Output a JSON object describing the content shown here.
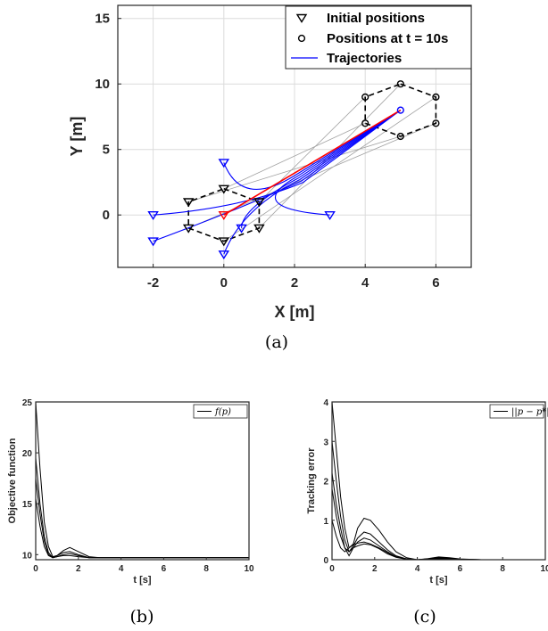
{
  "captions": [
    "(a)",
    "(b)",
    "(c)"
  ],
  "chart_data": [
    {
      "type": "scatter",
      "xlabel": "X [m]",
      "ylabel": "Y [m]",
      "xlim": [
        -3,
        7
      ],
      "ylim": [
        -4,
        16
      ],
      "xticks": [
        -2,
        0,
        2,
        4,
        6
      ],
      "yticks": [
        0,
        5,
        10,
        15
      ],
      "grid": true,
      "legend_position": "top-right",
      "legend": [
        "Initial positions",
        "Positions at t = 10s",
        "Trajectories"
      ],
      "initial_positions": [
        [
          0,
          2
        ],
        [
          1,
          1
        ],
        [
          1,
          -1
        ],
        [
          0,
          -2
        ],
        [
          -1,
          -1
        ],
        [
          -1,
          1
        ]
      ],
      "initial_positions_blue": [
        [
          0,
          4
        ],
        [
          3,
          0
        ],
        [
          0.5,
          -1
        ],
        [
          0,
          -3
        ],
        [
          -2,
          -2
        ],
        [
          -2,
          0
        ]
      ],
      "final_positions": [
        [
          5,
          10
        ],
        [
          6,
          9
        ],
        [
          6,
          7
        ],
        [
          5,
          6
        ],
        [
          4,
          7
        ],
        [
          4,
          9
        ]
      ],
      "final_position_blue": [
        5,
        8
      ],
      "initial_position_red": [
        0,
        0
      ],
      "colors": {
        "trajectory": "#0000ff",
        "leader": "#ff0000",
        "formation": "#000000",
        "reference": "#a0a0a0"
      }
    },
    {
      "type": "line",
      "xlabel": "t [s]",
      "ylabel": "Objective function",
      "xlim": [
        0,
        10
      ],
      "ylim": [
        9.5,
        25
      ],
      "xticks": [
        0,
        2,
        4,
        6,
        8,
        10
      ],
      "yticks": [
        10,
        15,
        20,
        25
      ],
      "legend": [
        "f(p)"
      ],
      "legend_position": "top-right",
      "series": [
        {
          "x": [
            0,
            0.2,
            0.4,
            0.6,
            0.8,
            1.0,
            1.3,
            1.6,
            2.0,
            2.5,
            3.0,
            4.0,
            6.0,
            10.0
          ],
          "values": [
            25.0,
            18.5,
            13.2,
            10.8,
            9.8,
            9.9,
            10.4,
            10.7,
            10.3,
            9.8,
            9.7,
            9.7,
            9.7,
            9.7
          ]
        },
        {
          "x": [
            0,
            0.2,
            0.4,
            0.6,
            0.8,
            1.0,
            1.3,
            1.6,
            2.0,
            2.5,
            3.0,
            4.0,
            6.0,
            10.0
          ],
          "values": [
            19.5,
            15.0,
            11.8,
            10.2,
            9.7,
            9.9,
            10.2,
            10.3,
            10.0,
            9.7,
            9.7,
            9.7,
            9.7,
            9.7
          ]
        },
        {
          "x": [
            0,
            0.2,
            0.4,
            0.6,
            0.8,
            1.0,
            1.3,
            1.6,
            2.0,
            2.5,
            3.0,
            4.0,
            6.0,
            10.0
          ],
          "values": [
            17.5,
            14.0,
            11.3,
            10.0,
            9.7,
            9.8,
            10.0,
            10.1,
            9.9,
            9.7,
            9.7,
            9.7,
            9.7,
            9.7
          ]
        },
        {
          "x": [
            0,
            0.2,
            0.4,
            0.6,
            0.8,
            1.0,
            1.3,
            1.6,
            2.0,
            2.5,
            3.0,
            4.0,
            6.0,
            10.0
          ],
          "values": [
            15.5,
            12.8,
            10.8,
            9.9,
            9.7,
            9.8,
            9.9,
            9.9,
            9.8,
            9.7,
            9.7,
            9.7,
            9.7,
            9.7
          ]
        }
      ]
    },
    {
      "type": "line",
      "xlabel": "t [s]",
      "ylabel": "Tracking error",
      "xlim": [
        0,
        10
      ],
      "ylim": [
        0,
        4
      ],
      "xticks": [
        0,
        2,
        4,
        6,
        8,
        10
      ],
      "yticks": [
        0,
        1,
        2,
        3,
        4
      ],
      "legend": [
        "||p − p*||"
      ],
      "legend_position": "top-right",
      "series": [
        {
          "x": [
            0,
            0.2,
            0.4,
            0.6,
            0.8,
            1.0,
            1.2,
            1.5,
            1.8,
            2.2,
            2.6,
            3.0,
            3.5,
            4.0,
            4.5,
            5.0,
            5.5,
            6.0,
            7.0,
            10.0
          ],
          "values": [
            4.0,
            2.8,
            1.6,
            0.8,
            0.3,
            0.4,
            0.8,
            1.05,
            1.0,
            0.75,
            0.45,
            0.2,
            0.05,
            0.0,
            0.03,
            0.07,
            0.05,
            0.02,
            0.0,
            0.0
          ]
        },
        {
          "x": [
            0,
            0.2,
            0.4,
            0.6,
            0.8,
            1.0,
            1.2,
            1.5,
            1.8,
            2.2,
            2.6,
            3.0,
            3.5,
            4.0,
            4.5,
            5.0,
            5.5,
            6.0,
            7.0,
            10.0
          ],
          "values": [
            3.0,
            2.0,
            1.1,
            0.5,
            0.2,
            0.35,
            0.55,
            0.7,
            0.65,
            0.45,
            0.25,
            0.1,
            0.02,
            0.0,
            0.02,
            0.05,
            0.04,
            0.01,
            0.0,
            0.0
          ]
        },
        {
          "x": [
            0,
            0.2,
            0.4,
            0.6,
            0.8,
            1.0,
            1.2,
            1.5,
            1.8,
            2.2,
            2.6,
            3.0,
            3.5,
            4.0,
            4.5,
            5.0,
            5.5,
            6.0,
            7.0,
            10.0
          ],
          "values": [
            2.2,
            1.4,
            0.8,
            0.3,
            0.1,
            0.3,
            0.45,
            0.55,
            0.5,
            0.35,
            0.2,
            0.08,
            0.02,
            0.0,
            0.02,
            0.04,
            0.03,
            0.01,
            0.0,
            0.0
          ]
        },
        {
          "x": [
            0,
            0.2,
            0.4,
            0.6,
            0.8,
            1.0,
            1.2,
            1.5,
            1.8,
            2.2,
            2.6,
            3.0,
            3.5,
            4.0,
            4.5,
            5.0,
            5.5,
            6.0,
            7.0,
            10.0
          ],
          "values": [
            1.8,
            1.1,
            0.6,
            0.3,
            0.2,
            0.3,
            0.35,
            0.4,
            0.38,
            0.28,
            0.15,
            0.06,
            0.01,
            0.0,
            0.01,
            0.03,
            0.02,
            0.01,
            0.0,
            0.0
          ]
        },
        {
          "x": [
            0,
            0.2,
            0.4,
            0.6,
            0.8,
            1.0,
            1.2,
            1.5,
            1.8,
            2.2,
            2.6,
            3.0,
            3.5,
            4.0,
            4.5,
            5.0,
            5.5,
            6.0,
            7.0,
            10.0
          ],
          "values": [
            1.0,
            0.6,
            0.3,
            0.2,
            0.3,
            0.38,
            0.42,
            0.45,
            0.4,
            0.3,
            0.18,
            0.07,
            0.02,
            0.0,
            0.01,
            0.02,
            0.02,
            0.01,
            0.0,
            0.0
          ]
        }
      ]
    }
  ]
}
